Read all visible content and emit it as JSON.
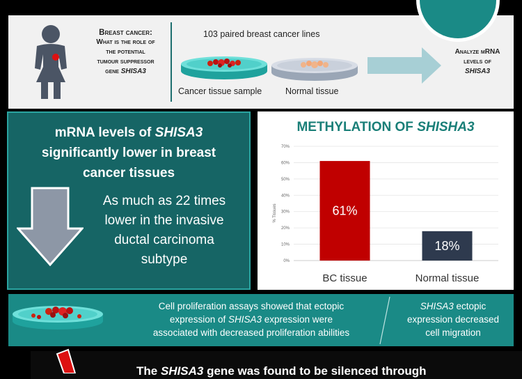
{
  "header": {
    "question_line1": "Breast cancer:",
    "question_line2": "What is the role of",
    "question_line3": "the potential",
    "question_line4": "tumour suppressor",
    "question_line5_prefix": "gene ",
    "question_line5_gene": "SHISA3",
    "sample_count": "103 paired breast cancer lines",
    "cancer_label": "Cancer tissue sample",
    "normal_label": "Normal tissue",
    "analyze_line1": "Analyze mRNA",
    "analyze_line2": "levels of",
    "analyze_line3": "SHISA3"
  },
  "finding": {
    "head1_prefix": "mRNA levels of ",
    "head1_gene": "SHISA3",
    "head2": "significantly lower in breast",
    "head3": "cancer tissues",
    "sub1": "As much as 22 times",
    "sub2": "lower in the invasive",
    "sub3": "ductal carcinoma",
    "sub4": "subtype"
  },
  "chart_data": {
    "type": "bar",
    "title_prefix": "Methylation of ",
    "title_gene": "SHISHA3",
    "ylabel": "% Tissues",
    "ylim": [
      0,
      70
    ],
    "yticks": [
      "0%",
      "10%",
      "20%",
      "30%",
      "40%",
      "50%",
      "60%",
      "70%"
    ],
    "categories": [
      "BC tissue",
      "Normal tissue"
    ],
    "values": [
      61,
      18
    ],
    "value_labels": [
      "61%",
      "18%"
    ],
    "colors": [
      "#c00000",
      "#2e3a4e"
    ]
  },
  "strip": {
    "prolif_line1": "Cell proliferation assays showed that ectopic",
    "prolif_line2_prefix": "expression of ",
    "prolif_line2_gene": "SHISA3",
    "prolif_line2_suffix": " expression were",
    "prolif_line3": "associated with decreased proliferation abilities",
    "migr_line1_gene": "SHISA3",
    "migr_line1_suffix": " ectopic",
    "migr_line2": "expression decreased",
    "migr_line3": "cell migration"
  },
  "banner": {
    "prefix": "The ",
    "gene": "SHISA3",
    "suffix": " gene was found to be silenced through"
  },
  "colors": {
    "teal_dark": "#166565",
    "teal": "#1a8a86",
    "red": "#c00000",
    "navy": "#2e3a4e"
  }
}
